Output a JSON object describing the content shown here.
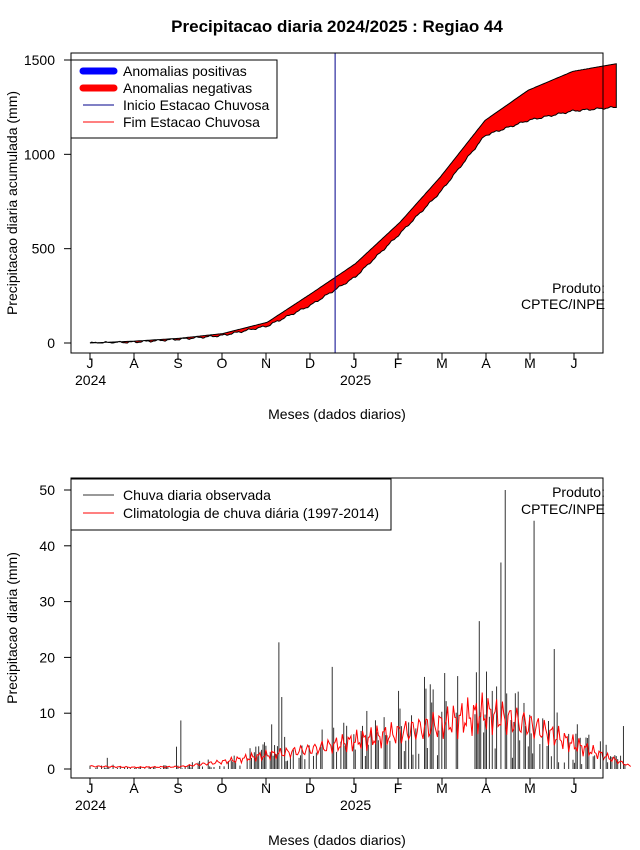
{
  "chart_data": [
    {
      "type": "area",
      "title": "Precipitacao diaria 2024/2025 : Regiao 44",
      "ylabel": "Precipitacao diaria acumulada (mm)",
      "xlabel": "Meses (dados diarios)",
      "months": [
        "J",
        "A",
        "S",
        "O",
        "N",
        "D",
        "J",
        "F",
        "M",
        "A",
        "M",
        "J"
      ],
      "years": [
        "2024",
        "2025"
      ],
      "yticks": [
        0,
        500,
        1000,
        1500
      ],
      "ylim": [
        -50,
        1550
      ],
      "grid": false,
      "legend_position": "top-left",
      "legend": [
        {
          "label": "Anomalias positivas",
          "color": "#0000ff"
        },
        {
          "label": "Anomalias negativas",
          "color": "#ff0000"
        },
        {
          "label": "Inicio Estacao Chuvosa",
          "color": "#00008b"
        },
        {
          "label": "Fim Estacao Chuvosa",
          "color": "#ff0000"
        }
      ],
      "annotation": [
        "Produto:",
        "CPTEC/INPE"
      ],
      "rainy_season_start_day": 170,
      "climatology_cumulative": {
        "day": [
          0,
          31,
          62,
          92,
          123,
          153,
          184,
          215,
          243,
          274,
          304,
          335,
          365
        ],
        "mm": [
          0,
          10,
          25,
          50,
          110,
          260,
          420,
          640,
          880,
          1180,
          1340,
          1440,
          1480
        ]
      },
      "observed_cumulative": {
        "day": [
          0,
          31,
          62,
          92,
          123,
          153,
          184,
          215,
          243,
          274,
          304,
          335,
          365
        ],
        "mm": [
          0,
          5,
          20,
          40,
          90,
          200,
          350,
          580,
          800,
          1100,
          1180,
          1230,
          1250
        ]
      }
    },
    {
      "type": "bar",
      "ylabel": "Precipitacao diaria (mm)",
      "xlabel": "Meses (dados diarios)",
      "months": [
        "J",
        "A",
        "S",
        "O",
        "N",
        "D",
        "J",
        "F",
        "M",
        "A",
        "M",
        "J"
      ],
      "years": [
        "2024",
        "2025"
      ],
      "yticks": [
        0,
        10,
        20,
        30,
        40,
        50
      ],
      "ylim": [
        -2,
        52
      ],
      "grid": false,
      "legend_position": "top-left",
      "legend": [
        {
          "label": "Chuva diaria observada",
          "color": "#333333"
        },
        {
          "label": "Climatologia de chuva diária (1997-2014)",
          "color": "#ff0000"
        }
      ],
      "annotation": [
        "Produto:",
        "CPTEC/INPE"
      ],
      "peak_observed_days": [
        {
          "day": 12,
          "mm": 2
        },
        {
          "day": 60,
          "mm": 4
        },
        {
          "day": 63,
          "mm": 8.7
        },
        {
          "day": 126,
          "mm": 8
        },
        {
          "day": 131,
          "mm": 22.7
        },
        {
          "day": 133,
          "mm": 12.9
        },
        {
          "day": 168,
          "mm": 18.3
        },
        {
          "day": 214,
          "mm": 14
        },
        {
          "day": 232,
          "mm": 16.5
        },
        {
          "day": 246,
          "mm": 17.2
        },
        {
          "day": 270,
          "mm": 26.5
        },
        {
          "day": 285,
          "mm": 37
        },
        {
          "day": 288,
          "mm": 50
        },
        {
          "day": 308,
          "mm": 44.5
        },
        {
          "day": 322,
          "mm": 21.5
        },
        {
          "day": 370,
          "mm": 7.7
        }
      ],
      "climatology_daily": {
        "day": [
          0,
          31,
          62,
          92,
          123,
          153,
          184,
          215,
          243,
          274,
          304,
          335,
          365,
          375
        ],
        "mm": [
          0.5,
          0.3,
          0.4,
          1.3,
          2.5,
          3.5,
          5,
          6.5,
          8,
          10,
          8,
          4.5,
          1.5,
          0.5
        ]
      }
    }
  ]
}
